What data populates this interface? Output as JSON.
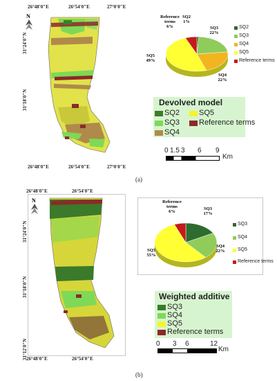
{
  "panels": [
    {
      "label": "(a)",
      "coords": {
        "top": [
          "26°48′0″E",
          "26°54′0″E",
          "27°0′0″E"
        ],
        "bottom": [
          "26°48′0″E",
          "26°54′0″E",
          "27°0′0″E"
        ],
        "left": [
          "31°24′0″N",
          "31°18′0″N"
        ]
      },
      "legend": {
        "title": "Devolved model",
        "items": [
          {
            "label": "SQ2",
            "color": "#3f7d2a"
          },
          {
            "label": "SQ5",
            "color": "#f5f52a"
          },
          {
            "label": "SQ3",
            "color": "#7ed957"
          },
          {
            "label": "Reference terms",
            "color": "#8b2a2a"
          },
          {
            "label": "SQ4",
            "color": "#b08a4a"
          }
        ]
      },
      "scale": {
        "ticks": [
          "0",
          "1.5",
          "3",
          "6",
          "9"
        ],
        "unit": "Km"
      },
      "pie": {
        "slices": [
          {
            "label": "SQ2",
            "value": 1,
            "color": "#2e6b2e",
            "text": "SQ2\n1%"
          },
          {
            "label": "SQ3",
            "value": 22,
            "color": "#8fcc5a",
            "text": "SQ3\n22%"
          },
          {
            "label": "SQ4",
            "value": 22,
            "color": "#f2b51f",
            "text": "SQ4\n22%"
          },
          {
            "label": "SQ5",
            "value": 49,
            "color": "#ffff33",
            "text": "SQ5\n49%"
          },
          {
            "label": "Reference terms",
            "value": 6,
            "color": "#c41a1a",
            "text": "Reference\nterms\n6%"
          }
        ]
      }
    },
    {
      "label": "(b)",
      "coords": {
        "top": [
          "26°48′0″E",
          "26°54′0″E"
        ],
        "bottom": [
          "26°48′0″E",
          "26°54′0″E"
        ],
        "left": [
          "31°24′0″N",
          "31°18′0″N",
          "31°12′0″N"
        ]
      },
      "legend": {
        "title": "Weighted additive",
        "items": [
          {
            "label": "SQ3",
            "color": "#3a7a2a"
          },
          {
            "label": "SQ4",
            "color": "#7ed957"
          },
          {
            "label": "SQ5",
            "color": "#f5f52a"
          },
          {
            "label": "Reference terms",
            "color": "#8b2a2a"
          }
        ]
      },
      "scale": {
        "ticks": [
          "0",
          "3",
          "6",
          "12"
        ],
        "unit": "Km"
      },
      "pie": {
        "slices": [
          {
            "label": "SQ3",
            "value": 17,
            "color": "#2e6b2e",
            "text": "SQ3\n17%"
          },
          {
            "label": "SQ4",
            "value": 22,
            "color": "#8fcc5a",
            "text": "SQ4\n22%"
          },
          {
            "label": "SQ5",
            "value": 55,
            "color": "#ffff33",
            "text": "SQ5\n55%"
          },
          {
            "label": "Reference terms",
            "value": 6,
            "color": "#c41a1a",
            "text": "Reference\nterms\n6%"
          }
        ]
      }
    }
  ]
}
